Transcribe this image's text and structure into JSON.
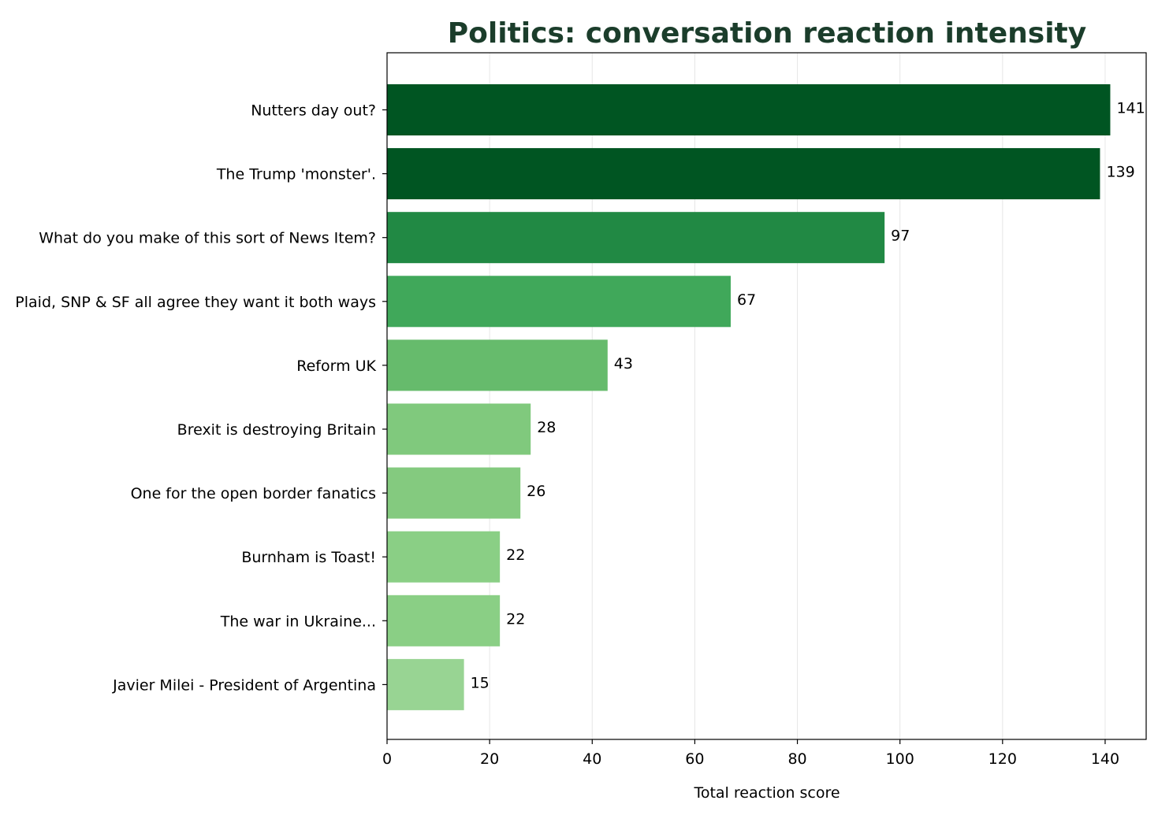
{
  "chart_data": {
    "type": "bar",
    "orientation": "horizontal",
    "title": "Politics: conversation reaction intensity",
    "xlabel": "Total reaction score",
    "ylabel": "",
    "xlim": [
      0,
      148
    ],
    "xticks": [
      0,
      20,
      40,
      60,
      80,
      100,
      120,
      140
    ],
    "grid": "vertical",
    "categories": [
      "Nutters day out?",
      "The Trump 'monster'.",
      "What do you make of this sort of News Item?",
      "Plaid, SNP & SF all agree they want it both ways",
      "Reform UK",
      "Brexit is destroying Britain",
      "One for the open border fanatics",
      "Burnham is Toast!",
      "The war in Ukraine...",
      "Javier Milei - President of Argentina"
    ],
    "values": [
      141,
      139,
      97,
      67,
      43,
      28,
      26,
      22,
      22,
      15
    ],
    "colors": [
      "#005522",
      "#005522",
      "#218944",
      "#40a85a",
      "#66bb6c",
      "#80c97d",
      "#84ca7f",
      "#8acf85",
      "#8acf85",
      "#98d493"
    ]
  }
}
